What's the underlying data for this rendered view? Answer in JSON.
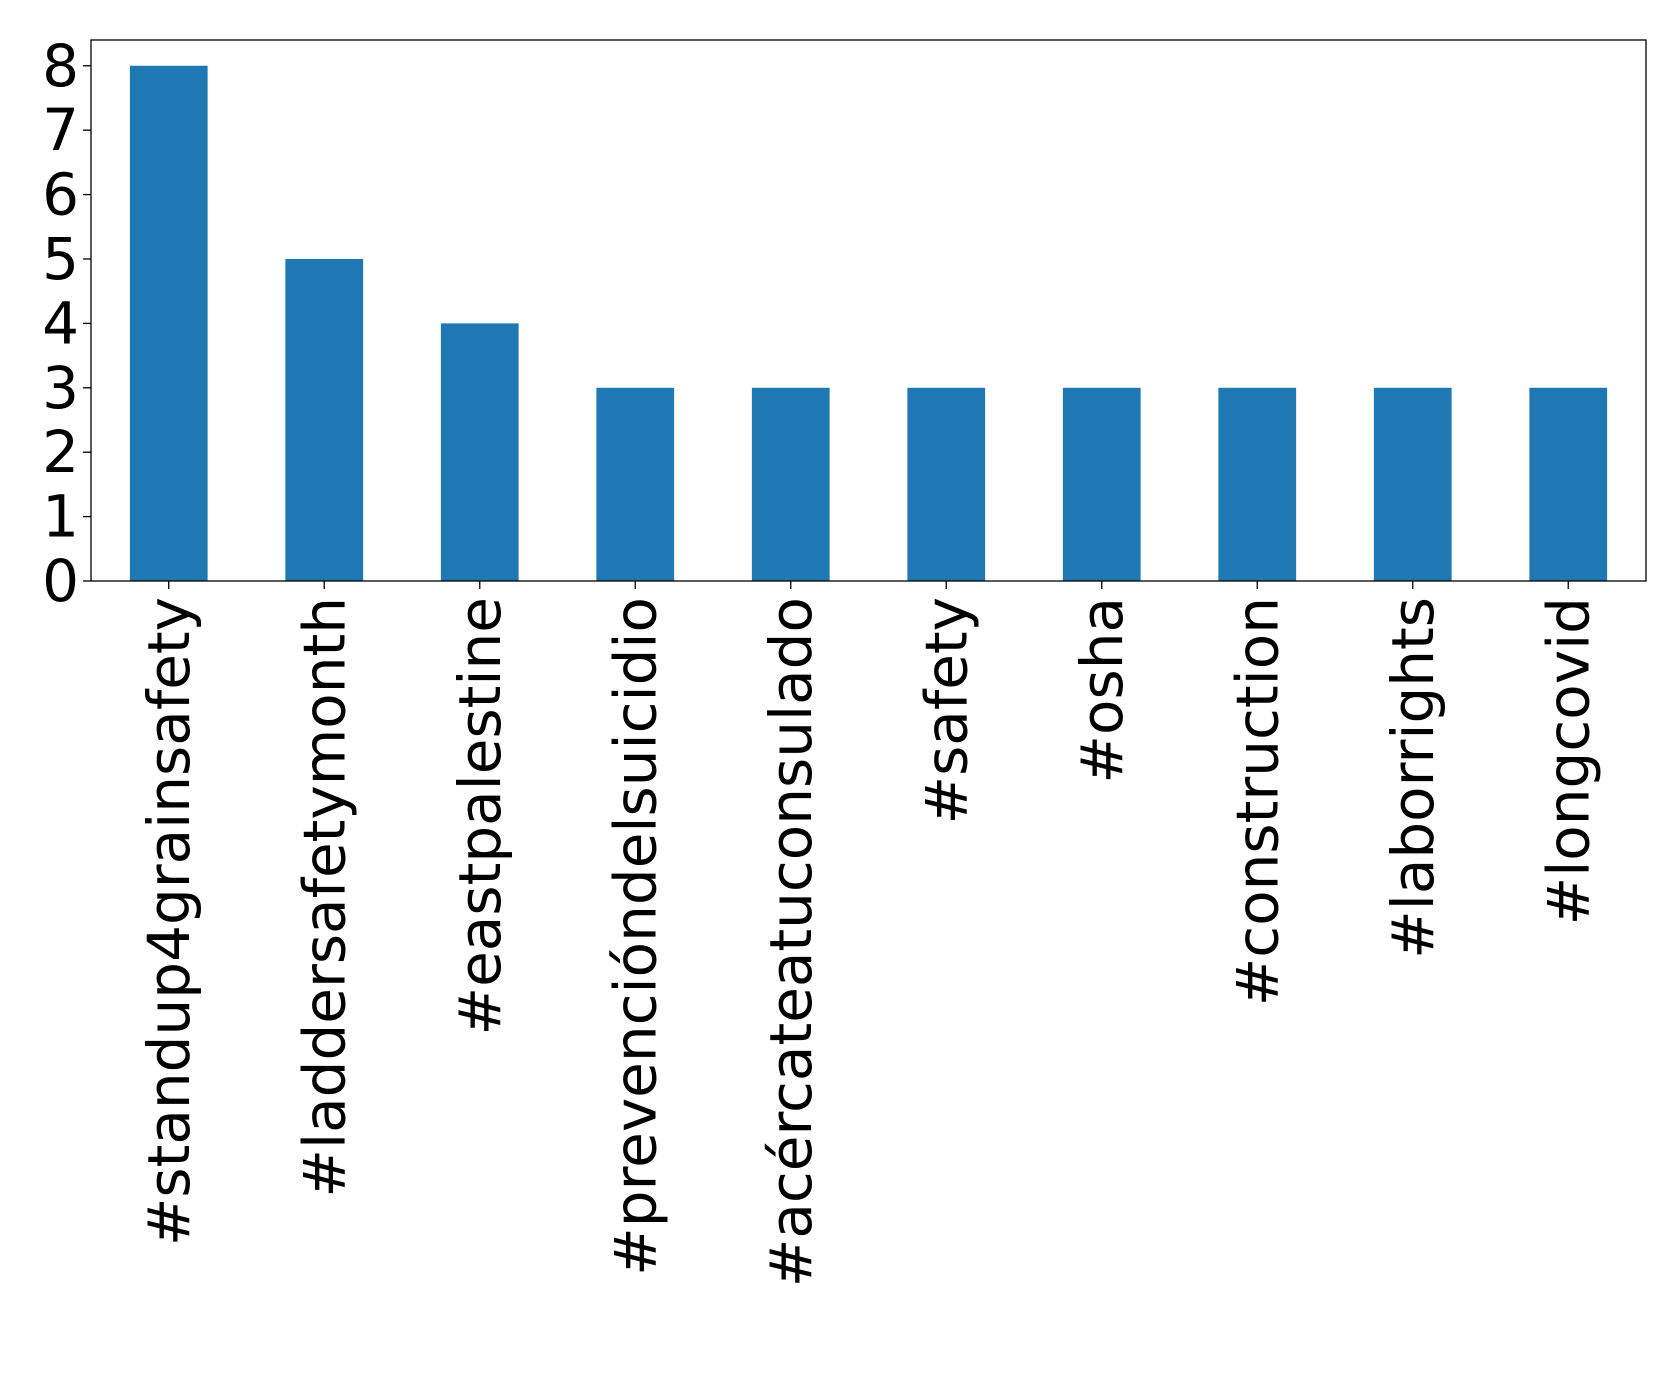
{
  "chart_data": {
    "type": "bar",
    "title": "",
    "xlabel": "",
    "ylabel": "",
    "categories": [
      "#standup4grainsafety",
      "#laddersafetymonth",
      "#eastpalestine",
      "#prevencióndelsuicidio",
      "#acércateatuconsulado",
      "#safety",
      "#osha",
      "#construction",
      "#laborrights",
      "#longcovid"
    ],
    "values": [
      8,
      5,
      4,
      3,
      3,
      3,
      3,
      3,
      3,
      3
    ],
    "ylim": [
      0,
      8.4
    ],
    "yticks": [
      "0",
      "1",
      "2",
      "3",
      "4",
      "5",
      "6",
      "7",
      "8"
    ],
    "grid": false,
    "legend": "none",
    "colors": {
      "bar": "#1f77b4",
      "axis": "#000000"
    }
  }
}
